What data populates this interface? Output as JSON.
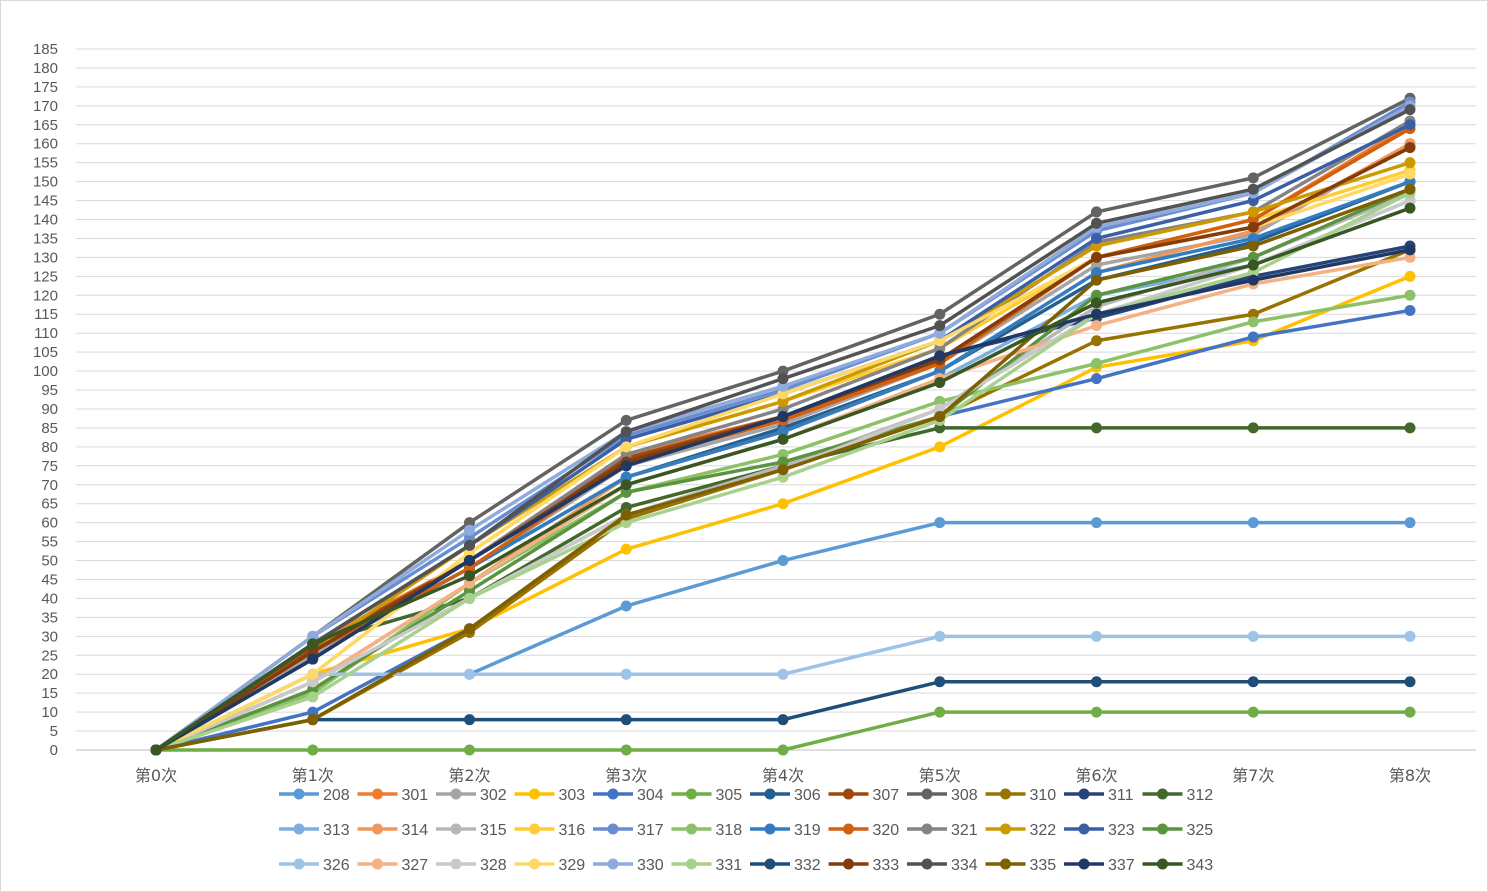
{
  "chart_data": {
    "type": "line",
    "title": "",
    "xlabel": "",
    "ylabel": "",
    "categories": [
      "第0次",
      "第1次",
      "第2次",
      "第3次",
      "第4次",
      "第5次",
      "第6次",
      "第7次",
      "第8次"
    ],
    "ylim": [
      0,
      185
    ],
    "ytick_step": 5,
    "grid": true,
    "legend_position": "bottom",
    "series": [
      {
        "name": "208",
        "color": "#5b9bd5",
        "values": [
          0,
          20,
          20,
          38,
          50,
          60,
          60,
          60,
          60
        ]
      },
      {
        "name": "301",
        "color": "#ed7d31",
        "values": [
          0,
          28,
          50,
          78,
          88,
          103,
          130,
          140,
          165
        ]
      },
      {
        "name": "302",
        "color": "#a5a5a5",
        "values": [
          0,
          25,
          48,
          75,
          86,
          102,
          128,
          136,
          160
        ]
      },
      {
        "name": "303",
        "color": "#ffc000",
        "values": [
          0,
          20,
          32,
          53,
          65,
          80,
          101,
          108,
          125
        ]
      },
      {
        "name": "304",
        "color": "#4472c4",
        "values": [
          0,
          10,
          32,
          62,
          74,
          88,
          98,
          109,
          116
        ]
      },
      {
        "name": "305",
        "color": "#70ad47",
        "values": [
          0,
          0,
          0,
          0,
          0,
          10,
          10,
          10,
          10
        ]
      },
      {
        "name": "306",
        "color": "#255e91",
        "values": [
          0,
          26,
          48,
          72,
          85,
          100,
          124,
          134,
          150
        ]
      },
      {
        "name": "307",
        "color": "#9e480e",
        "values": [
          0,
          27,
          50,
          77,
          88,
          103,
          130,
          138,
          159
        ]
      },
      {
        "name": "308",
        "color": "#636363",
        "values": [
          0,
          30,
          60,
          87,
          100,
          115,
          142,
          151,
          172
        ]
      },
      {
        "name": "310",
        "color": "#997300",
        "values": [
          0,
          8,
          31,
          61,
          74,
          88,
          108,
          115,
          132
        ]
      },
      {
        "name": "311",
        "color": "#264478",
        "values": [
          0,
          24,
          50,
          76,
          88,
          104,
          114,
          125,
          133
        ]
      },
      {
        "name": "312",
        "color": "#43682b",
        "values": [
          0,
          28,
          40,
          64,
          75,
          85,
          85,
          85,
          85
        ]
      },
      {
        "name": "313",
        "color": "#7cafdd",
        "values": [
          0,
          18,
          44,
          70,
          82,
          98,
          120,
          128,
          145
        ]
      },
      {
        "name": "314",
        "color": "#f1975a",
        "values": [
          0,
          18,
          44,
          72,
          84,
          100,
          126,
          137,
          160
        ]
      },
      {
        "name": "315",
        "color": "#b7b7b7",
        "values": [
          0,
          18,
          40,
          62,
          75,
          90,
          117,
          130,
          147
        ]
      },
      {
        "name": "316",
        "color": "#ffcd33",
        "values": [
          0,
          20,
          52,
          80,
          92,
          106,
          130,
          140,
          153
        ]
      },
      {
        "name": "317",
        "color": "#698ed0",
        "values": [
          0,
          30,
          56,
          83,
          95,
          110,
          137,
          147,
          171
        ]
      },
      {
        "name": "318",
        "color": "#8cc168",
        "values": [
          0,
          15,
          44,
          68,
          78,
          92,
          102,
          113,
          120
        ]
      },
      {
        "name": "319",
        "color": "#327dc2",
        "values": [
          0,
          26,
          48,
          72,
          84,
          100,
          126,
          135,
          150
        ]
      },
      {
        "name": "320",
        "color": "#d26012",
        "values": [
          0,
          26,
          48,
          76,
          87,
          102,
          130,
          140,
          164
        ]
      },
      {
        "name": "321",
        "color": "#848484",
        "values": [
          0,
          26,
          50,
          78,
          90,
          106,
          134,
          142,
          166
        ]
      },
      {
        "name": "322",
        "color": "#cc9a00",
        "values": [
          0,
          26,
          54,
          80,
          92,
          108,
          133,
          142,
          155
        ]
      },
      {
        "name": "323",
        "color": "#3a5fa6",
        "values": [
          0,
          28,
          54,
          82,
          94,
          108,
          135,
          145,
          165
        ]
      },
      {
        "name": "325",
        "color": "#5b9340",
        "values": [
          0,
          16,
          42,
          68,
          76,
          88,
          120,
          130,
          148
        ]
      },
      {
        "name": "326",
        "color": "#9dc3e6",
        "values": [
          0,
          20,
          20,
          20,
          20,
          30,
          30,
          30,
          30
        ]
      },
      {
        "name": "327",
        "color": "#f4b183",
        "values": [
          0,
          18,
          44,
          70,
          82,
          98,
          112,
          123,
          130
        ]
      },
      {
        "name": "328",
        "color": "#c9c9c9",
        "values": [
          0,
          18,
          40,
          62,
          74,
          90,
          115,
          128,
          145
        ]
      },
      {
        "name": "329",
        "color": "#ffd966",
        "values": [
          0,
          20,
          52,
          80,
          94,
          108,
          130,
          138,
          152
        ]
      },
      {
        "name": "330",
        "color": "#8faadc",
        "values": [
          0,
          30,
          58,
          84,
          96,
          110,
          138,
          147,
          170
        ]
      },
      {
        "name": "331",
        "color": "#a9d18e",
        "values": [
          0,
          14,
          40,
          60,
          72,
          87,
          115,
          126,
          147
        ]
      },
      {
        "name": "332",
        "color": "#1f4e79",
        "values": [
          0,
          8,
          8,
          8,
          8,
          18,
          18,
          18,
          18
        ]
      },
      {
        "name": "333",
        "color": "#843c0c",
        "values": [
          0,
          26,
          50,
          76,
          88,
          103,
          130,
          138,
          159
        ]
      },
      {
        "name": "334",
        "color": "#525252",
        "values": [
          0,
          28,
          54,
          84,
          98,
          112,
          139,
          148,
          169
        ]
      },
      {
        "name": "335",
        "color": "#7f6000",
        "values": [
          0,
          8,
          32,
          62,
          74,
          88,
          124,
          133,
          148
        ]
      },
      {
        "name": "337",
        "color": "#203864",
        "values": [
          0,
          24,
          50,
          75,
          88,
          104,
          115,
          124,
          132
        ]
      },
      {
        "name": "343",
        "color": "#385723",
        "values": [
          0,
          28,
          46,
          70,
          82,
          97,
          118,
          128,
          143
        ]
      }
    ]
  }
}
